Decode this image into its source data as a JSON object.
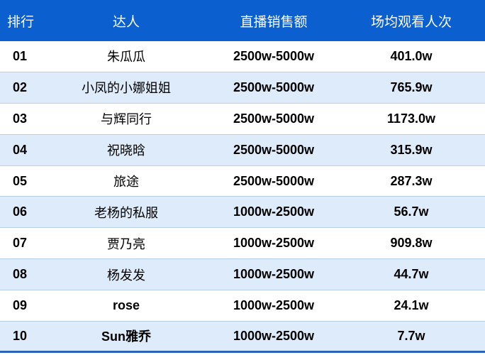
{
  "header": {
    "rank": "排行",
    "name": "达人",
    "sales": "直播销售额",
    "views": "场均观看人次"
  },
  "colors": {
    "header_bg": "#0b5fcf",
    "alt_row_bg": "#deebfa"
  },
  "rows": [
    {
      "rank": "01",
      "name": "朱瓜瓜",
      "sales": "2500w-5000w",
      "views": "401.0w"
    },
    {
      "rank": "02",
      "name": "小凤的小娜姐姐",
      "sales": "2500w-5000w",
      "views": "765.9w"
    },
    {
      "rank": "03",
      "name": "与辉同行",
      "sales": "2500w-5000w",
      "views": "1173.0w"
    },
    {
      "rank": "04",
      "name": "祝晓晗",
      "sales": "2500w-5000w",
      "views": "315.9w"
    },
    {
      "rank": "05",
      "name": "旅途",
      "sales": "2500w-5000w",
      "views": "287.3w"
    },
    {
      "rank": "06",
      "name": "老杨的私服",
      "sales": "1000w-2500w",
      "views": "56.7w"
    },
    {
      "rank": "07",
      "name": "贾乃亮",
      "sales": "1000w-2500w",
      "views": "909.8w"
    },
    {
      "rank": "08",
      "name": "杨发发",
      "sales": "1000w-2500w",
      "views": "44.7w"
    },
    {
      "rank": "09",
      "name": "rose",
      "sales": "1000w-2500w",
      "views": "24.1w"
    },
    {
      "rank": "10",
      "name": "Sun雅乔",
      "sales": "1000w-2500w",
      "views": "7.7w"
    }
  ]
}
